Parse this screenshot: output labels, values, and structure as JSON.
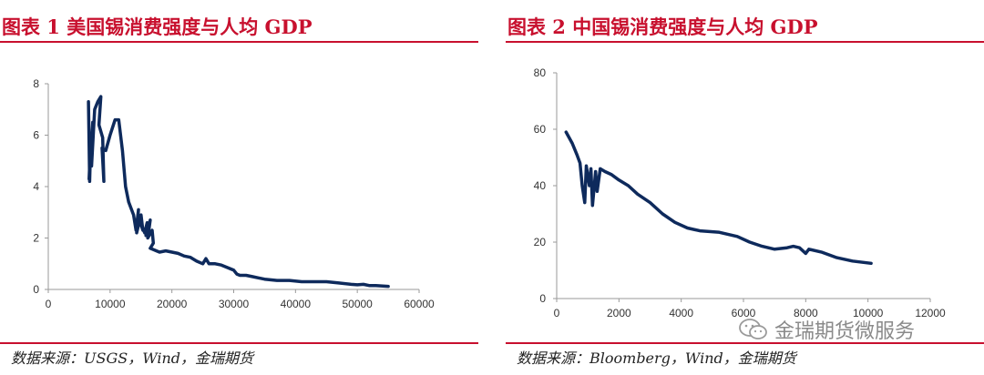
{
  "figures": [
    {
      "title": "图表 1 美国锡消费强度与人均 GDP",
      "source": "数据来源：USGS，Wind，金瑞期货"
    },
    {
      "title": "图表 2 中国锡消费强度与人均 GDP",
      "source": "数据来源：Bloomberg，Wind，金瑞期货"
    }
  ],
  "watermark": {
    "text": "金瑞期货微服务",
    "icon": "wechat-icon"
  },
  "colors": {
    "title": "#c8102e",
    "rule": "#c8102e",
    "series": "#0e2a5c",
    "axis": "#9a9a9a"
  },
  "chart_data": [
    {
      "type": "line",
      "title": "图表 1 美国锡消费强度与人均 GDP",
      "xlabel": "",
      "ylabel": "",
      "xlim": [
        0,
        60000
      ],
      "ylim": [
        0,
        8
      ],
      "x_ticks": [
        "0",
        "10000",
        "20000",
        "30000",
        "40000",
        "50000",
        "60000"
      ],
      "y_ticks": [
        "0",
        "2",
        "4",
        "6",
        "8"
      ],
      "grid": false,
      "series": [
        {
          "name": "美国",
          "x": [
            6500,
            6700,
            6900,
            6600,
            7200,
            7000,
            7500,
            8000,
            8500,
            8200,
            8800,
            9000,
            8700,
            9300,
            10000,
            10800,
            11400,
            12000,
            12500,
            13000,
            13800,
            14200,
            14600,
            14300,
            15000,
            15300,
            14900,
            15600,
            16000,
            15800,
            16500,
            16100,
            16800,
            17000,
            16500,
            17500,
            18000,
            19000,
            20000,
            21000,
            22000,
            23000,
            24000,
            25000,
            25500,
            26000,
            27000,
            28000,
            29000,
            30000,
            30500,
            31000,
            32000,
            33000,
            34000,
            35000,
            37000,
            39000,
            41000,
            43000,
            45000,
            47000,
            49000,
            50000,
            51000,
            52000,
            53000,
            55000
          ],
          "values": [
            7.3,
            4.2,
            6.0,
            4.3,
            6.5,
            4.8,
            7.0,
            7.3,
            7.5,
            6.4,
            5.9,
            4.2,
            5.5,
            5.4,
            6.0,
            6.6,
            6.6,
            5.4,
            4.0,
            3.4,
            2.9,
            2.3,
            3.1,
            2.2,
            2.9,
            2.3,
            2.6,
            2.2,
            2.6,
            2.1,
            2.7,
            2.0,
            2.3,
            1.8,
            1.6,
            1.5,
            1.45,
            1.5,
            1.45,
            1.4,
            1.3,
            1.25,
            1.1,
            1.0,
            1.2,
            1.0,
            1.0,
            0.95,
            0.85,
            0.75,
            0.6,
            0.55,
            0.55,
            0.5,
            0.45,
            0.4,
            0.35,
            0.35,
            0.3,
            0.3,
            0.3,
            0.25,
            0.2,
            0.18,
            0.2,
            0.15,
            0.15,
            0.12
          ]
        }
      ]
    },
    {
      "type": "line",
      "title": "图表 2 中国锡消费强度与人均 GDP",
      "xlabel": "",
      "ylabel": "",
      "xlim": [
        0,
        12000
      ],
      "ylim": [
        0,
        80
      ],
      "x_ticks": [
        "0",
        "2000",
        "4000",
        "6000",
        "8000",
        "10000",
        "12000"
      ],
      "y_ticks": [
        "0",
        "20",
        "40",
        "60",
        "80"
      ],
      "grid": false,
      "series": [
        {
          "name": "中国",
          "x": [
            300,
            500,
            650,
            750,
            820,
            900,
            950,
            1050,
            1100,
            1150,
            1250,
            1300,
            1400,
            1550,
            1750,
            2000,
            2300,
            2600,
            3000,
            3400,
            3800,
            4200,
            4600,
            5200,
            5800,
            6200,
            6600,
            7000,
            7400,
            7600,
            7800,
            7900,
            8000,
            8100,
            8500,
            9000,
            9500,
            10100
          ],
          "values": [
            59,
            55,
            51,
            48,
            40,
            34,
            47,
            40,
            46,
            33,
            45,
            38,
            46,
            45,
            44,
            42,
            40,
            37,
            34,
            30,
            27,
            25,
            24,
            23.5,
            22,
            20,
            18.5,
            17.5,
            18,
            18.5,
            18,
            17,
            16,
            17.5,
            16.5,
            14.5,
            13.3,
            12.5
          ]
        }
      ]
    }
  ]
}
